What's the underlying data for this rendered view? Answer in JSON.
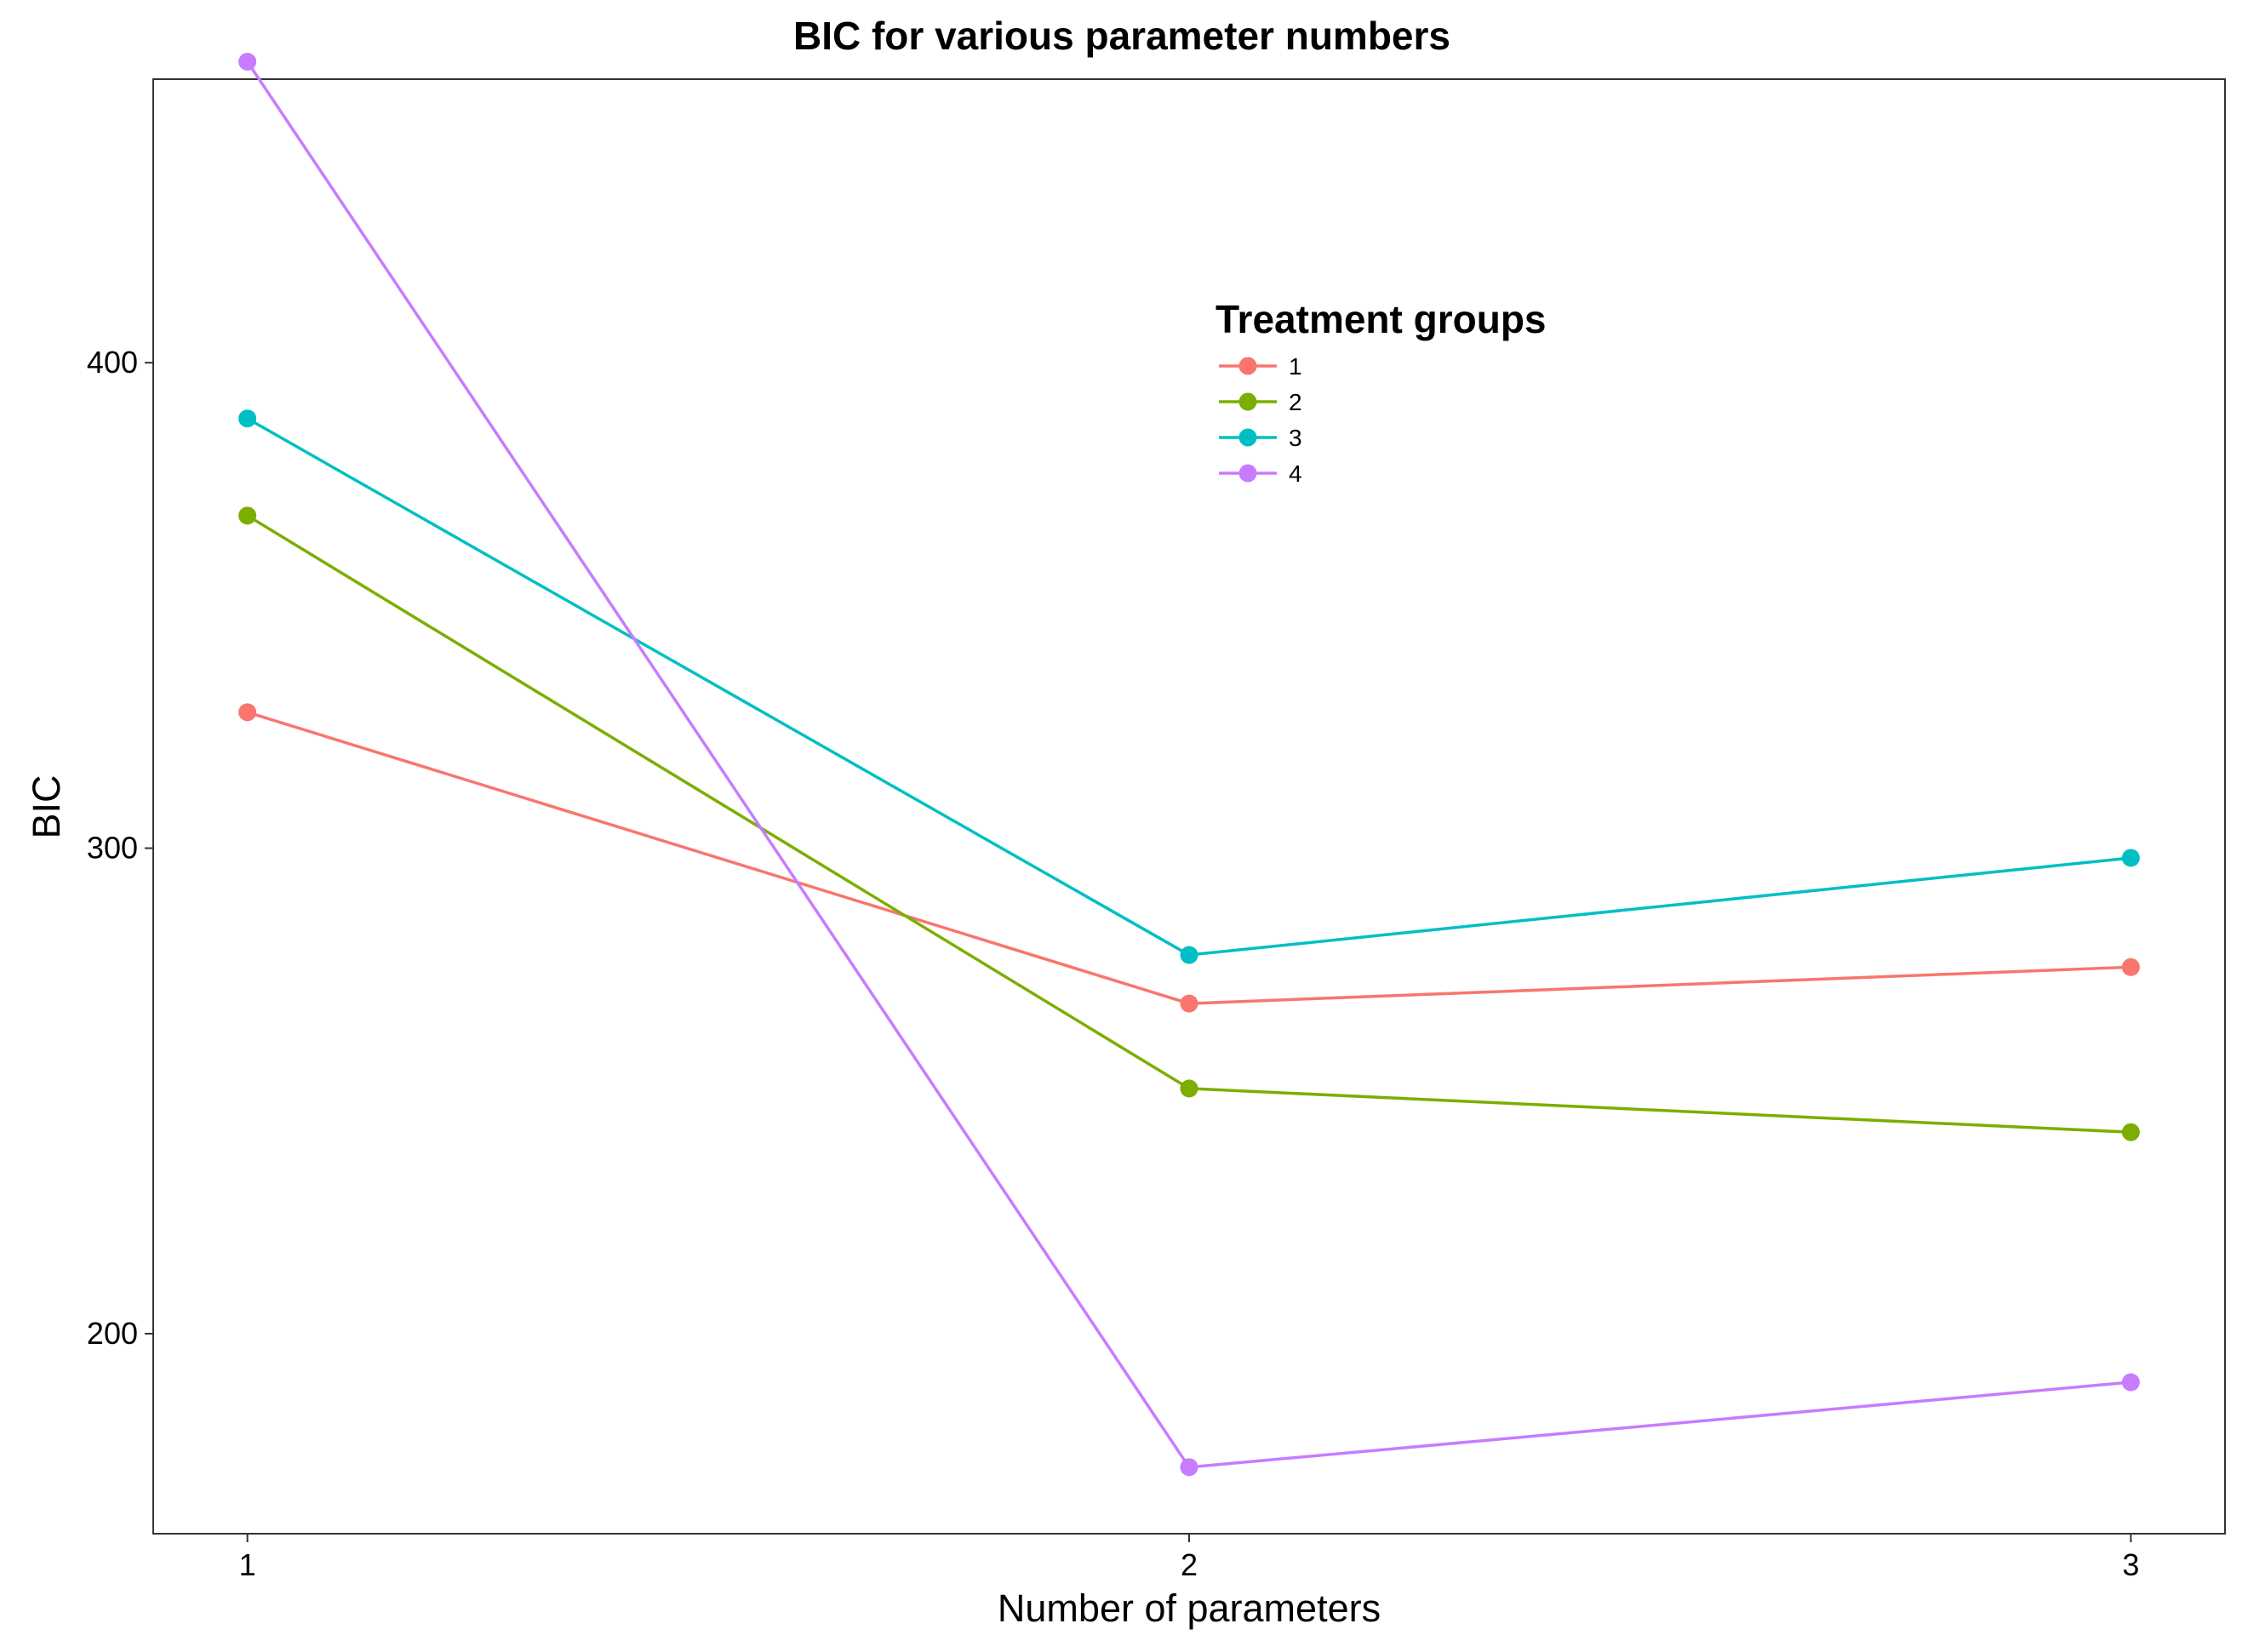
{
  "chart_data": {
    "type": "line",
    "title": "BIC for various parameter numbers",
    "xlabel": "Number of parameters",
    "ylabel": "BIC",
    "x": [
      1,
      2,
      3
    ],
    "x_ticks": [
      "1",
      "2",
      "3"
    ],
    "y_ticks": [
      "200",
      "300",
      "400"
    ],
    "y_tick_values": [
      200,
      300,
      400
    ],
    "xlim": [
      0.9,
      3.1
    ],
    "ylim": [
      158.8,
      458.4
    ],
    "grid": false,
    "legend": {
      "title": "Treatment groups",
      "position": "top-center"
    },
    "series": [
      {
        "name": "1",
        "color": "#F8766D",
        "values": [
          328,
          268,
          275.5
        ]
      },
      {
        "name": "2",
        "color": "#7CAE00",
        "values": [
          368.5,
          250.5,
          241.5
        ]
      },
      {
        "name": "3",
        "color": "#00BFC4",
        "values": [
          388.5,
          278,
          298
        ]
      },
      {
        "name": "4",
        "color": "#C77CFF",
        "values": [
          462,
          172.5,
          190
        ]
      }
    ]
  }
}
